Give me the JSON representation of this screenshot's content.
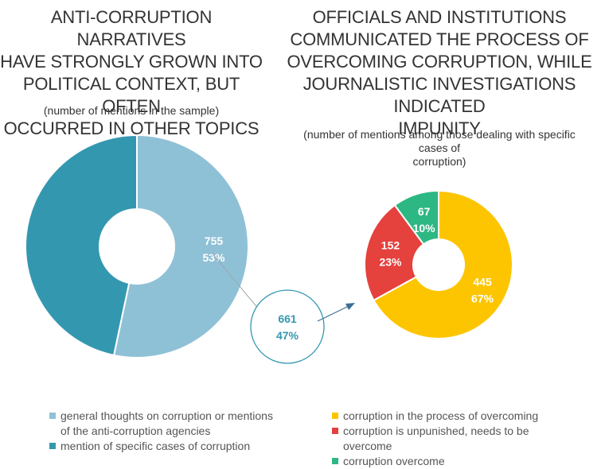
{
  "left_title": "ANTI-CORRUPTION NARRATIVES\nHAVE STRONGLY GROWN INTO\nPOLITICAL CONTEXT, BUT OFTEN\nOCCURRED IN OTHER TOPICS",
  "left_subtitle": "(number of mentions in the sample)",
  "right_title": "OFFICIALS AND INSTITUTIONS\nCOMMUNICATED THE PROCESS OF\nOVERCOMING CORRUPTION, WHILE\nJOURNALISTIC INVESTIGATIONS INDICATED\nIMPUNITY",
  "right_subtitle": "(number of mentions among those dealing with specific cases of\ncorruption)",
  "chart_data": [
    {
      "type": "pie",
      "title": "ANTI-CORRUPTION NARRATIVES HAVE STRONGLY GROWN INTO POLITICAL CONTEXT, BUT OFTEN OCCURRED IN OTHER TOPICS",
      "subtitle": "(number of mentions in the sample)",
      "donut": true,
      "categories": [
        "general thoughts on corruption or mentions of the anti-corruption agencies",
        "mention of specific cases of corruption"
      ],
      "values": [
        755,
        661
      ],
      "value_labels": [
        "755",
        "661"
      ],
      "percent_labels": [
        "53%",
        "47%"
      ],
      "colors": [
        "#8fc1d6",
        "#3497b0"
      ],
      "legend": "bottom"
    },
    {
      "type": "pie",
      "title": "OFFICIALS AND INSTITUTIONS COMMUNICATED THE PROCESS OF OVERCOMING CORRUPTION, WHILE JOURNALISTIC INVESTIGATIONS INDICATED IMPUNITY",
      "subtitle": "(number of mentions among those dealing with specific cases of corruption)",
      "donut": true,
      "categories": [
        "corruption in the process of overcoming",
        "corruption is unpunished, needs to be overcome",
        "corruption overcome"
      ],
      "values": [
        445,
        152,
        67
      ],
      "value_labels": [
        "445",
        "152",
        "67"
      ],
      "percent_labels": [
        "67%",
        "23%",
        "10%"
      ],
      "colors": [
        "#fdc500",
        "#e5413d",
        "#2db783"
      ],
      "legend": "bottom"
    }
  ]
}
